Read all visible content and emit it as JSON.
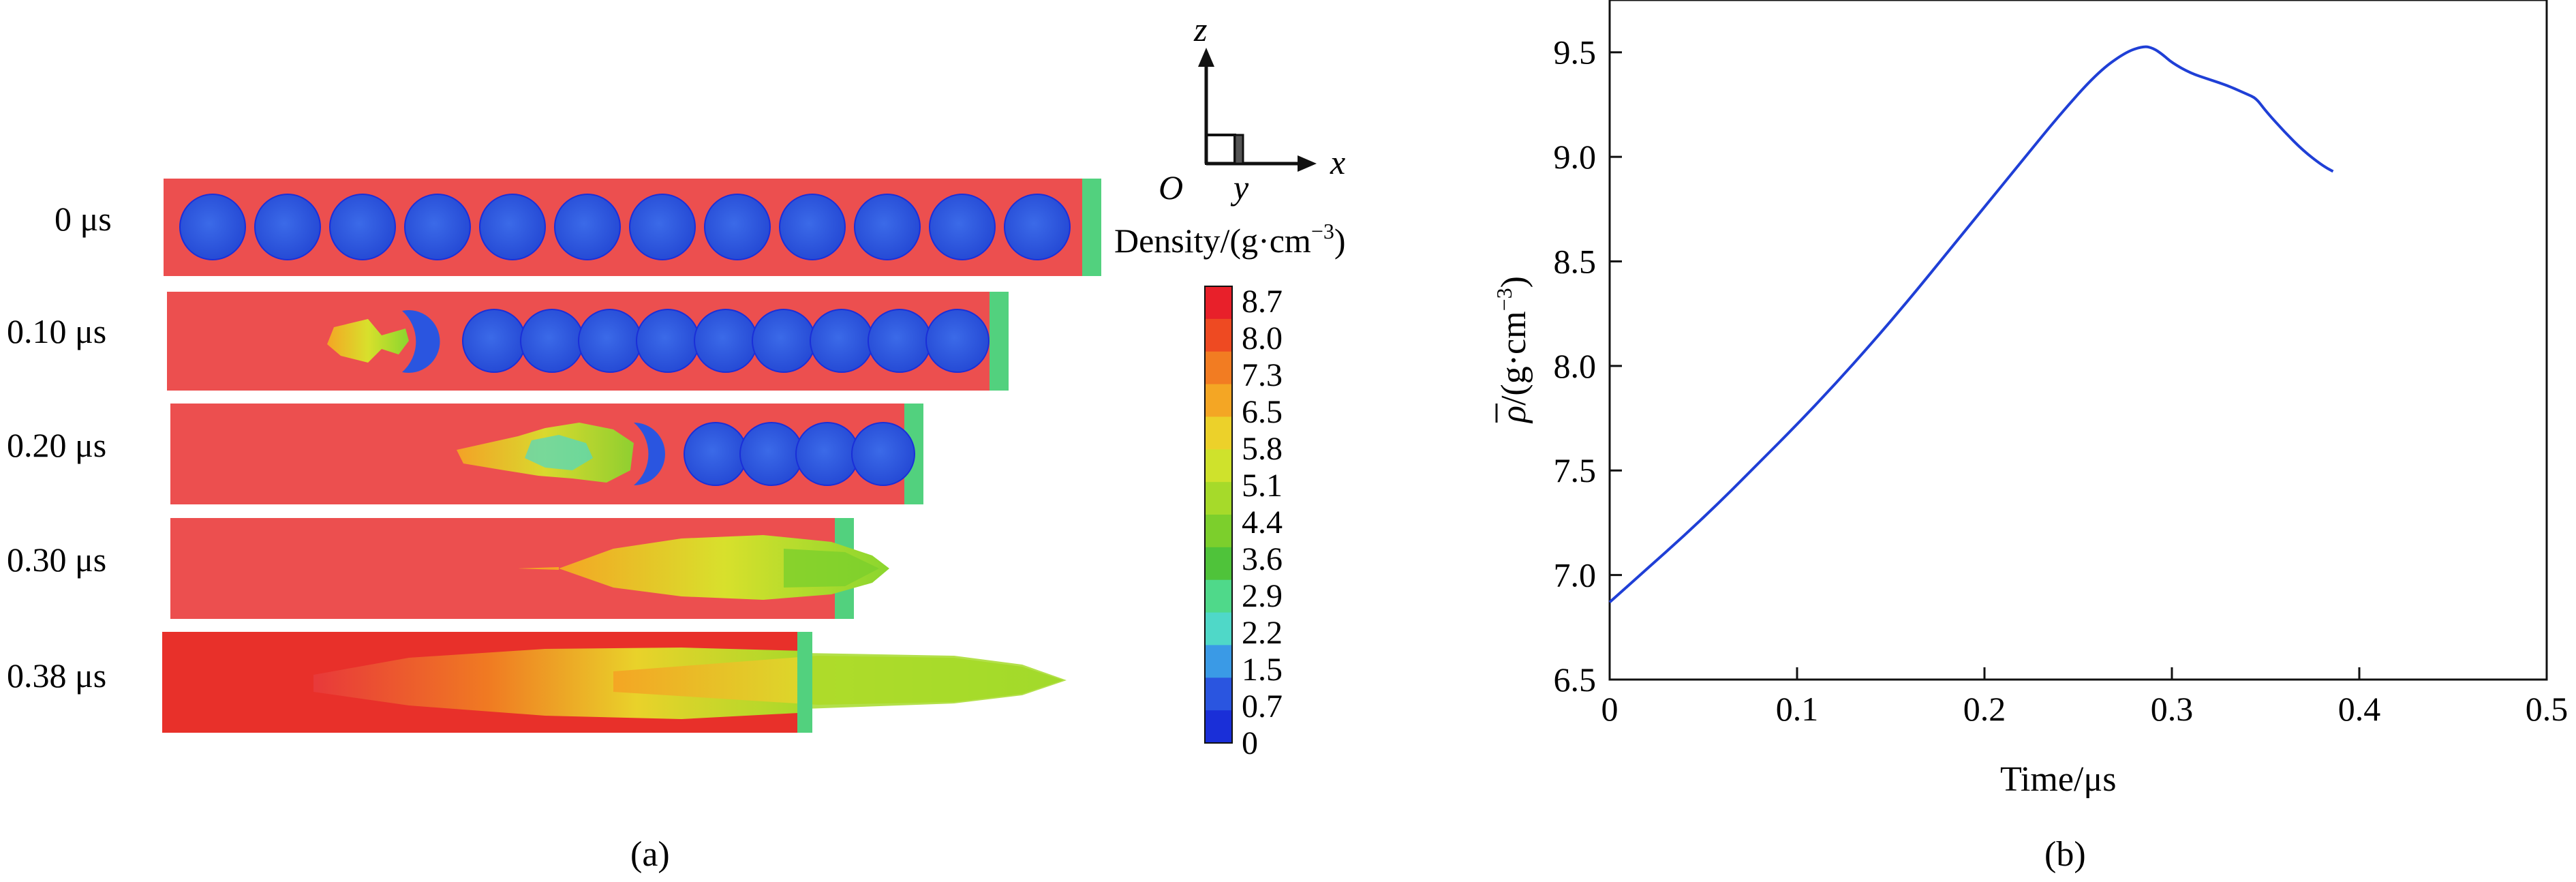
{
  "panel_a": {
    "caption": "(a)",
    "time_labels": [
      "0 μs",
      "0.10 μs",
      "0.20 μs",
      "0.30 μs",
      "0.38 μs"
    ],
    "axes": {
      "z": "z",
      "x": "x",
      "y": "y",
      "origin": "O"
    },
    "colorbar": {
      "title": "Density/(g·cm",
      "title_exp": "−3",
      "title_close": ")",
      "ticks": [
        "8.7",
        "8.0",
        "7.3",
        "6.5",
        "5.8",
        "5.1",
        "4.4",
        "3.6",
        "2.9",
        "2.2",
        "1.5",
        "0.7",
        "0"
      ],
      "colors": [
        "#e8202a",
        "#ee4a22",
        "#f27c22",
        "#f4a624",
        "#ecd12a",
        "#cfe22c",
        "#a6da2a",
        "#7ccf2c",
        "#4fc33a",
        "#4fd98a",
        "#4fd8c8",
        "#3a9ae6",
        "#2a55e0",
        "#1a2fd8"
      ]
    }
  },
  "panel_b": {
    "caption": "(b)",
    "chart_data": {
      "type": "line",
      "xlabel": "Time/μs",
      "ylabel": "ρ̄/(g·cm−3)",
      "ylabel_main": "ρ",
      "ylabel_unit": "/(g·cm",
      "ylabel_exp": "−3",
      "ylabel_close": ")",
      "xlim": [
        0,
        0.5
      ],
      "ylim": [
        6.5,
        9.75
      ],
      "xticks": [
        "0",
        "0.1",
        "0.2",
        "0.3",
        "0.4",
        "0.5"
      ],
      "yticks": [
        "6.5",
        "7.0",
        "7.5",
        "8.0",
        "8.5",
        "9.0",
        "9.5"
      ],
      "line_color": "#1f3fd6",
      "series": [
        {
          "x": [
            0,
            0.02,
            0.04,
            0.06,
            0.08,
            0.1,
            0.12,
            0.14,
            0.16,
            0.18,
            0.2,
            0.22,
            0.24,
            0.26,
            0.275,
            0.285,
            0.29,
            0.295,
            0.3,
            0.31,
            0.32,
            0.33,
            0.34,
            0.345,
            0.35,
            0.36,
            0.37,
            0.38,
            0.386
          ],
          "y": [
            6.87,
            7.03,
            7.19,
            7.36,
            7.54,
            7.72,
            7.91,
            8.11,
            8.32,
            8.54,
            8.76,
            8.98,
            9.2,
            9.4,
            9.5,
            9.53,
            9.52,
            9.49,
            9.45,
            9.4,
            9.37,
            9.34,
            9.3,
            9.28,
            9.22,
            9.12,
            9.03,
            8.96,
            8.93
          ]
        }
      ]
    }
  }
}
